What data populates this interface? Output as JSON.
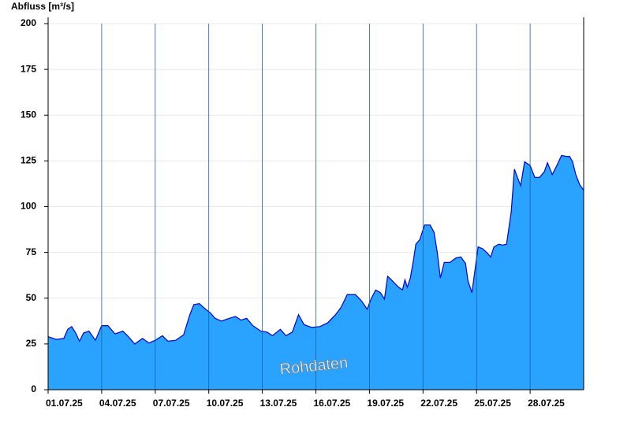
{
  "chart_data": {
    "type": "area",
    "y_label": "Abfluss [m³/s]",
    "annotation": "Rohdaten",
    "x": [
      1.0,
      1.44,
      1.88,
      2.1,
      2.32,
      2.54,
      2.76,
      2.99,
      3.29,
      3.65,
      4.0,
      4.35,
      4.75,
      5.19,
      5.5,
      5.85,
      6.29,
      6.65,
      7.0,
      7.4,
      7.71,
      8.15,
      8.59,
      8.94,
      9.16,
      9.47,
      9.82,
      10.09,
      10.35,
      10.71,
      11.15,
      11.5,
      11.81,
      12.12,
      12.47,
      12.91,
      13.26,
      13.57,
      14.01,
      14.32,
      14.68,
      15.03,
      15.34,
      15.78,
      16.22,
      16.66,
      17.1,
      17.41,
      17.76,
      18.21,
      18.56,
      18.87,
      19.09,
      19.35,
      19.62,
      19.84,
      20.02,
      20.28,
      20.63,
      20.85,
      20.99,
      21.12,
      21.29,
      21.47,
      21.6,
      21.82,
      22.09,
      22.4,
      22.62,
      22.8,
      22.97,
      23.19,
      23.5,
      23.85,
      24.12,
      24.38,
      24.52,
      24.74,
      24.87,
      25.09,
      25.35,
      25.62,
      25.79,
      25.97,
      26.24,
      26.46,
      26.68,
      26.94,
      27.12,
      27.29,
      27.47,
      27.69,
      28.0,
      28.26,
      28.53,
      28.79,
      28.97,
      29.24,
      29.5,
      29.76,
      30.03,
      30.21,
      30.38,
      30.56,
      30.78,
      31.0
    ],
    "series": [
      {
        "name": "Abfluss",
        "color": "#29a3ff",
        "line_color": "#0000cc",
        "values": [
          29,
          27.5,
          28,
          33,
          34.5,
          31,
          26.5,
          31,
          32,
          27,
          35,
          35,
          30.5,
          32,
          29,
          25,
          28,
          25.5,
          27,
          29.5,
          26.5,
          27,
          30,
          41,
          46.5,
          47,
          44,
          42,
          39,
          37.5,
          39,
          40,
          38,
          39,
          35,
          32,
          31.5,
          29.5,
          33,
          29.5,
          31.5,
          41,
          35.5,
          34,
          34.5,
          36.5,
          41,
          45,
          52,
          52,
          48.5,
          44,
          49.5,
          54.5,
          53,
          49.5,
          62,
          59.5,
          56,
          54.5,
          60,
          56,
          61,
          71,
          79.5,
          82,
          90,
          90,
          86,
          75,
          61,
          69.5,
          69.5,
          72,
          72.5,
          69,
          59.5,
          53,
          62.5,
          78,
          77,
          74.5,
          72.5,
          78,
          79.5,
          79,
          79.5,
          97,
          120.5,
          116,
          111.5,
          124.5,
          122.5,
          116,
          116,
          119,
          124,
          117.5,
          122.5,
          128,
          127.5,
          127.5,
          124.5,
          117.5,
          112,
          109
        ]
      }
    ],
    "xlim": [
      1,
      31
    ],
    "xticks": [
      {
        "value": 1,
        "label": "01.07.25"
      },
      {
        "value": 4,
        "label": "04.07.25"
      },
      {
        "value": 7,
        "label": "07.07.25"
      },
      {
        "value": 10,
        "label": "10.07.25"
      },
      {
        "value": 13,
        "label": "13.07.25"
      },
      {
        "value": 16,
        "label": "16.07.25"
      },
      {
        "value": 19,
        "label": "19.07.25"
      },
      {
        "value": 22,
        "label": "22.07.25"
      },
      {
        "value": 25,
        "label": "25.07.25"
      },
      {
        "value": 28,
        "label": "28.07.25"
      }
    ],
    "ylim": [
      0,
      200
    ],
    "yticks": [
      0,
      25,
      50,
      75,
      100,
      125,
      150,
      175,
      200
    ],
    "grid": true
  }
}
